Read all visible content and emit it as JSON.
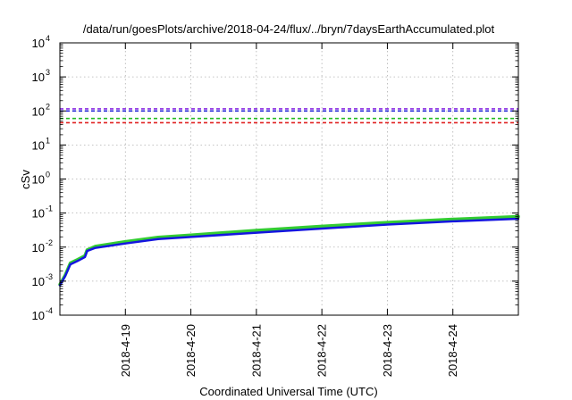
{
  "chart_data": {
    "type": "line",
    "title": "/data/run/goesPlots/archive/2018-04-24/flux/../bryn/7daysEarthAccumulated.plot",
    "xlabel": "Coordinated Universal Time (UTC)",
    "ylabel": "cSv",
    "y_scale": "log",
    "ylim": [
      0.0001,
      10000
    ],
    "xlim": [
      "2018-04-18 00:00",
      "2018-04-25 00:00"
    ],
    "y_ticks": [
      {
        "value": 0.0001,
        "base": "10",
        "exp": "-4"
      },
      {
        "value": 0.001,
        "base": "10",
        "exp": "-3"
      },
      {
        "value": 0.01,
        "base": "10",
        "exp": "-2"
      },
      {
        "value": 0.1,
        "base": "10",
        "exp": "-1"
      },
      {
        "value": 1,
        "base": "10",
        "exp": "0"
      },
      {
        "value": 10,
        "base": "10",
        "exp": "1"
      },
      {
        "value": 100,
        "base": "10",
        "exp": "2"
      },
      {
        "value": 1000,
        "base": "10",
        "exp": "3"
      },
      {
        "value": 10000,
        "base": "10",
        "exp": "4"
      }
    ],
    "x_ticks": [
      {
        "value": "2018-04-19 00:00",
        "label": "2018-4-19"
      },
      {
        "value": "2018-04-20 00:00",
        "label": "2018-4-20"
      },
      {
        "value": "2018-04-21 00:00",
        "label": "2018-4-21"
      },
      {
        "value": "2018-04-22 00:00",
        "label": "2018-4-22"
      },
      {
        "value": "2018-04-23 00:00",
        "label": "2018-4-23"
      },
      {
        "value": "2018-04-24 00:00",
        "label": "2018-4-24"
      }
    ],
    "grid": true,
    "thresholds": [
      {
        "value": 115,
        "color": "#8a2be2"
      },
      {
        "value": 100,
        "color": "#1f1fd6"
      },
      {
        "value": 60,
        "color": "#22bb22"
      },
      {
        "value": 45,
        "color": "#e02020"
      }
    ],
    "series": [
      {
        "color": "#33cc33",
        "width": 3.5,
        "points": [
          [
            "2018-04-18 00:00",
            0.0008
          ],
          [
            "2018-04-18 01:55",
            0.0015
          ],
          [
            "2018-04-18 03:50",
            0.0034
          ],
          [
            "2018-04-18 06:30",
            0.0043
          ],
          [
            "2018-04-18 09:10",
            0.0056
          ],
          [
            "2018-04-18 10:00",
            0.0083
          ],
          [
            "2018-04-18 13:00",
            0.0105
          ],
          [
            "2018-04-19 00:00",
            0.0145
          ],
          [
            "2018-04-19 12:00",
            0.0195
          ],
          [
            "2018-04-20 00:00",
            0.0225
          ],
          [
            "2018-04-21 00:00",
            0.031
          ],
          [
            "2018-04-22 00:00",
            0.041
          ],
          [
            "2018-04-23 00:00",
            0.053
          ],
          [
            "2018-04-24 00:00",
            0.066
          ],
          [
            "2018-04-25 00:00",
            0.079
          ]
        ]
      },
      {
        "color": "#1515e0",
        "width": 2.5,
        "points": [
          [
            "2018-04-18 00:00",
            0.00075
          ],
          [
            "2018-04-18 01:55",
            0.0014
          ],
          [
            "2018-04-18 03:50",
            0.0031
          ],
          [
            "2018-04-18 06:30",
            0.0039
          ],
          [
            "2018-04-18 09:10",
            0.0051
          ],
          [
            "2018-04-18 10:00",
            0.0077
          ],
          [
            "2018-04-18 13:00",
            0.0095
          ],
          [
            "2018-04-19 00:00",
            0.0128
          ],
          [
            "2018-04-19 12:00",
            0.0172
          ],
          [
            "2018-04-20 00:00",
            0.0198
          ],
          [
            "2018-04-21 00:00",
            0.0265
          ],
          [
            "2018-04-22 00:00",
            0.035
          ],
          [
            "2018-04-23 00:00",
            0.046
          ],
          [
            "2018-04-24 00:00",
            0.057
          ],
          [
            "2018-04-25 00:00",
            0.068
          ]
        ]
      }
    ]
  }
}
